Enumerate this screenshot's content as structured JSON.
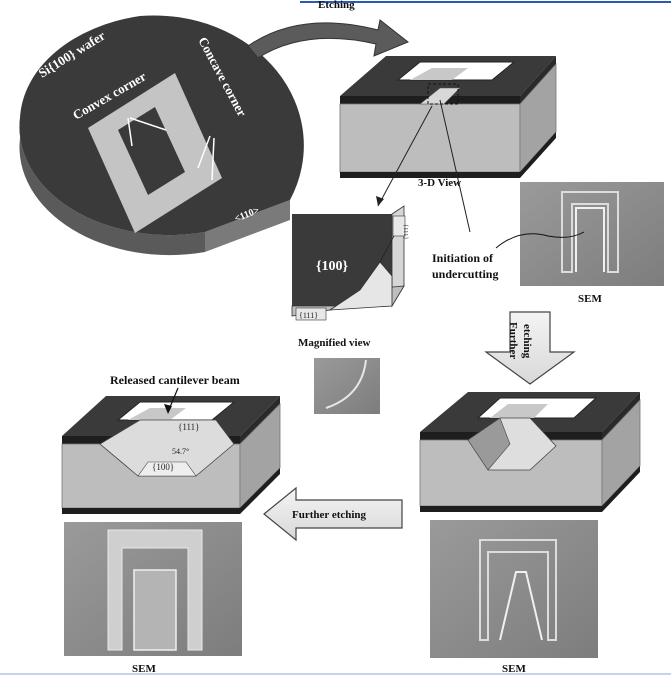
{
  "labels": {
    "etching": "Etching",
    "wafer": "Si{100} wafer",
    "convex_corner": "Convex corner",
    "concave_corner": "Concave corner",
    "direction": "<110>",
    "view_3d": "3-D View",
    "initiation_line1": "Initiation of",
    "initiation_line2": "undercutting",
    "sem_top": "SEM",
    "plane_100": "{100}",
    "plane_111_a": "{111}",
    "plane_111_b": "{111}",
    "magnified_view": "Magnified view",
    "further_etching_v1": "Further",
    "further_etching_v2": "etching",
    "released_beam": "Released cantilever beam",
    "beam_111": "{111}",
    "beam_angle": "54.7°",
    "beam_100": "{100}",
    "further_etching_h": "Further etching",
    "sem_bottom_left": "SEM",
    "sem_bottom_right": "SEM"
  },
  "colors": {
    "wafer_top": "#3a3a3a",
    "mask_light": "#c4c4c4",
    "substrate": "#bdbdbd",
    "sem_bg": "#8a8a8a",
    "accent_line": "#2a5ab8"
  }
}
